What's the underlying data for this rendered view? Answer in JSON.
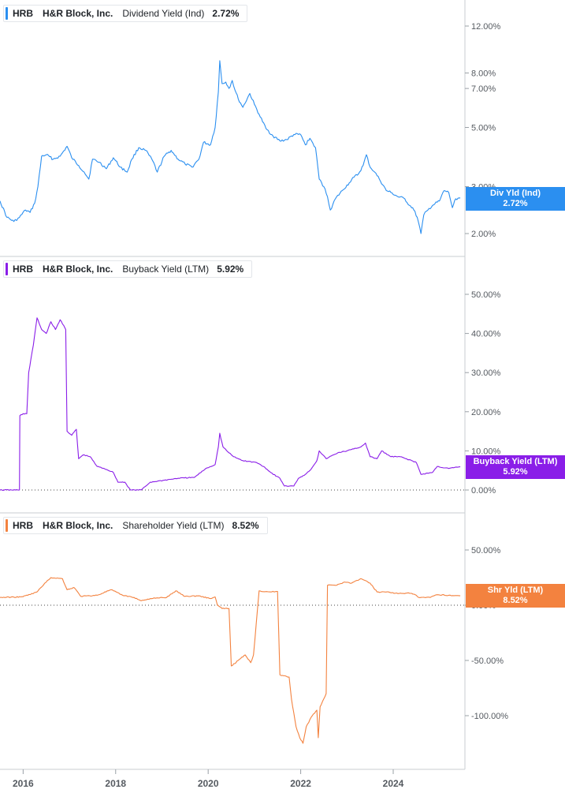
{
  "colors": {
    "div": "#2b8ff0",
    "buyback": "#8a1ee8",
    "shr": "#f3823f"
  },
  "panels": [
    {
      "ticker": "HRB",
      "company": "H&R Block, Inc.",
      "metric": "Dividend Yield (Ind)",
      "value": "2.72%",
      "badge_label": "Div Yld (Ind)",
      "badge_value": "2.72%"
    },
    {
      "ticker": "HRB",
      "company": "H&R Block, Inc.",
      "metric": "Buyback Yield (LTM)",
      "value": "5.92%",
      "badge_label": "Buyback Yield (LTM)",
      "badge_value": "5.92%"
    },
    {
      "ticker": "HRB",
      "company": "H&R Block, Inc.",
      "metric": "Shareholder Yield (LTM)",
      "value": "8.52%",
      "badge_label": "Shr Yld (LTM)",
      "badge_value": "8.52%"
    }
  ],
  "chart_data": [
    {
      "type": "line",
      "name": "Dividend Yield (Ind)",
      "scale": "log",
      "ylim": [
        1.85,
        14
      ],
      "yticks": [
        {
          "v": 12,
          "label": "12.00%"
        },
        {
          "v": 8,
          "label": "8.00%"
        },
        {
          "v": 7,
          "label": "7.00%"
        },
        {
          "v": 5,
          "label": "5.00%"
        },
        {
          "v": 3,
          "label": "3.00%"
        },
        {
          "v": 2,
          "label": "2.00%"
        }
      ],
      "xlim": [
        2015.5,
        2025.55
      ],
      "xticks": [
        2016,
        2018,
        2020,
        2022,
        2024
      ],
      "points": [
        [
          2015.5,
          2.65
        ],
        [
          2015.65,
          2.3
        ],
        [
          2015.8,
          2.22
        ],
        [
          2015.92,
          2.3
        ],
        [
          2016.05,
          2.45
        ],
        [
          2016.15,
          2.4
        ],
        [
          2016.25,
          2.6
        ],
        [
          2016.32,
          3.0
        ],
        [
          2016.4,
          3.9
        ],
        [
          2016.5,
          3.95
        ],
        [
          2016.65,
          3.8
        ],
        [
          2016.8,
          3.9
        ],
        [
          2016.95,
          4.25
        ],
        [
          2017.05,
          3.85
        ],
        [
          2017.2,
          3.6
        ],
        [
          2017.32,
          3.4
        ],
        [
          2017.42,
          3.2
        ],
        [
          2017.5,
          3.8
        ],
        [
          2017.65,
          3.7
        ],
        [
          2017.8,
          3.5
        ],
        [
          2017.95,
          3.85
        ],
        [
          2018.1,
          3.55
        ],
        [
          2018.25,
          3.4
        ],
        [
          2018.35,
          3.8
        ],
        [
          2018.5,
          4.2
        ],
        [
          2018.65,
          4.1
        ],
        [
          2018.8,
          3.75
        ],
        [
          2018.9,
          3.4
        ],
        [
          2019.05,
          3.9
        ],
        [
          2019.2,
          4.1
        ],
        [
          2019.35,
          3.8
        ],
        [
          2019.5,
          3.65
        ],
        [
          2019.65,
          3.55
        ],
        [
          2019.8,
          3.8
        ],
        [
          2019.9,
          4.4
        ],
        [
          2020.05,
          4.3
        ],
        [
          2020.15,
          5.0
        ],
        [
          2020.22,
          6.8
        ],
        [
          2020.25,
          8.9
        ],
        [
          2020.3,
          7.3
        ],
        [
          2020.38,
          7.4
        ],
        [
          2020.45,
          7.0
        ],
        [
          2020.52,
          7.5
        ],
        [
          2020.58,
          6.9
        ],
        [
          2020.65,
          6.4
        ],
        [
          2020.75,
          5.95
        ],
        [
          2020.9,
          6.7
        ],
        [
          2021.0,
          6.1
        ],
        [
          2021.1,
          5.6
        ],
        [
          2021.25,
          4.95
        ],
        [
          2021.4,
          4.65
        ],
        [
          2021.55,
          4.45
        ],
        [
          2021.7,
          4.5
        ],
        [
          2021.85,
          4.7
        ],
        [
          2022.0,
          4.7
        ],
        [
          2022.1,
          4.3
        ],
        [
          2022.2,
          4.55
        ],
        [
          2022.32,
          4.2
        ],
        [
          2022.4,
          3.2
        ],
        [
          2022.5,
          3.0
        ],
        [
          2022.58,
          2.75
        ],
        [
          2022.64,
          2.45
        ],
        [
          2022.75,
          2.7
        ],
        [
          2022.9,
          2.9
        ],
        [
          2023.05,
          3.1
        ],
        [
          2023.15,
          3.25
        ],
        [
          2023.25,
          3.35
        ],
        [
          2023.35,
          3.6
        ],
        [
          2023.42,
          3.95
        ],
        [
          2023.5,
          3.55
        ],
        [
          2023.6,
          3.4
        ],
        [
          2023.7,
          3.2
        ],
        [
          2023.85,
          2.9
        ],
        [
          2023.95,
          2.85
        ],
        [
          2024.1,
          2.75
        ],
        [
          2024.25,
          2.7
        ],
        [
          2024.35,
          2.55
        ],
        [
          2024.42,
          2.5
        ],
        [
          2024.52,
          2.3
        ],
        [
          2024.6,
          2.0
        ],
        [
          2024.66,
          2.35
        ],
        [
          2024.75,
          2.45
        ],
        [
          2024.85,
          2.55
        ],
        [
          2025.0,
          2.65
        ],
        [
          2025.1,
          2.9
        ],
        [
          2025.2,
          2.85
        ],
        [
          2025.28,
          2.5
        ],
        [
          2025.35,
          2.7
        ],
        [
          2025.45,
          2.72
        ]
      ]
    },
    {
      "type": "line",
      "name": "Buyback Yield (LTM)",
      "scale": "linear",
      "ylim": [
        -1,
        55
      ],
      "yticks": [
        {
          "v": 50,
          "label": "50.00%"
        },
        {
          "v": 40,
          "label": "40.00%"
        },
        {
          "v": 30,
          "label": "30.00%"
        },
        {
          "v": 20,
          "label": "20.00%"
        },
        {
          "v": 10,
          "label": "10.00%"
        },
        {
          "v": 0,
          "label": "0.00%"
        }
      ],
      "zero_line": 0,
      "xlim": [
        2015.5,
        2025.55
      ],
      "points": [
        [
          2015.5,
          0.0
        ],
        [
          2015.92,
          0.0
        ],
        [
          2015.93,
          19.0
        ],
        [
          2016.0,
          19.5
        ],
        [
          2016.08,
          19.5
        ],
        [
          2016.12,
          30.0
        ],
        [
          2016.22,
          37.0
        ],
        [
          2016.3,
          44.0
        ],
        [
          2016.4,
          41.0
        ],
        [
          2016.5,
          40.0
        ],
        [
          2016.6,
          43.0
        ],
        [
          2016.7,
          41.0
        ],
        [
          2016.8,
          43.5
        ],
        [
          2016.88,
          42.0
        ],
        [
          2016.92,
          41.0
        ],
        [
          2016.95,
          15.0
        ],
        [
          2017.05,
          14.0
        ],
        [
          2017.15,
          15.5
        ],
        [
          2017.2,
          8.0
        ],
        [
          2017.3,
          9.0
        ],
        [
          2017.45,
          8.5
        ],
        [
          2017.6,
          6.0
        ],
        [
          2017.75,
          5.5
        ],
        [
          2017.95,
          4.5
        ],
        [
          2018.05,
          2.0
        ],
        [
          2018.2,
          2.0
        ],
        [
          2018.32,
          0.0
        ],
        [
          2018.55,
          0.0
        ],
        [
          2018.75,
          2.0
        ],
        [
          2019.05,
          2.5
        ],
        [
          2019.35,
          3.0
        ],
        [
          2019.7,
          3.2
        ],
        [
          2019.95,
          5.5
        ],
        [
          2020.15,
          6.5
        ],
        [
          2020.22,
          11.0
        ],
        [
          2020.25,
          14.5
        ],
        [
          2020.32,
          11.0
        ],
        [
          2020.45,
          9.5
        ],
        [
          2020.55,
          8.5
        ],
        [
          2020.75,
          7.5
        ],
        [
          2021.05,
          7.0
        ],
        [
          2021.2,
          6.0
        ],
        [
          2021.35,
          4.5
        ],
        [
          2021.55,
          3.0
        ],
        [
          2021.65,
          1.0
        ],
        [
          2021.85,
          1.0
        ],
        [
          2021.95,
          3.0
        ],
        [
          2022.1,
          4.0
        ],
        [
          2022.2,
          5.0
        ],
        [
          2022.35,
          7.5
        ],
        [
          2022.4,
          10.0
        ],
        [
          2022.55,
          8.0
        ],
        [
          2022.8,
          9.5
        ],
        [
          2023.0,
          10.0
        ],
        [
          2023.15,
          10.5
        ],
        [
          2023.3,
          11.0
        ],
        [
          2023.4,
          12.0
        ],
        [
          2023.5,
          8.5
        ],
        [
          2023.65,
          8.0
        ],
        [
          2023.75,
          10.0
        ],
        [
          2023.95,
          8.5
        ],
        [
          2024.15,
          8.5
        ],
        [
          2024.4,
          7.5
        ],
        [
          2024.5,
          7.0
        ],
        [
          2024.6,
          4.0
        ],
        [
          2024.85,
          4.5
        ],
        [
          2024.95,
          6.0
        ],
        [
          2025.2,
          5.5
        ],
        [
          2025.45,
          5.92
        ]
      ]
    },
    {
      "type": "line",
      "name": "Shareholder Yield (LTM)",
      "scale": "linear",
      "ylim": [
        -128,
        70
      ],
      "yticks": [
        {
          "v": 50,
          "label": "50.00%"
        },
        {
          "v": 0,
          "label": "0.00%"
        },
        {
          "v": -50,
          "label": "-50.00%"
        },
        {
          "v": -100,
          "label": "-100.00%"
        }
      ],
      "zero_line": 0,
      "xlim": [
        2015.5,
        2025.55
      ],
      "points": [
        [
          2015.5,
          7.0
        ],
        [
          2015.95,
          7.5
        ],
        [
          2016.1,
          9.0
        ],
        [
          2016.3,
          12.0
        ],
        [
          2016.45,
          19.0
        ],
        [
          2016.6,
          25.0
        ],
        [
          2016.85,
          24.0
        ],
        [
          2016.95,
          14.0
        ],
        [
          2017.1,
          16.0
        ],
        [
          2017.25,
          8.0
        ],
        [
          2017.6,
          9.0
        ],
        [
          2017.9,
          14.0
        ],
        [
          2018.15,
          9.0
        ],
        [
          2018.4,
          7.0
        ],
        [
          2018.55,
          4.0
        ],
        [
          2018.75,
          6.0
        ],
        [
          2019.1,
          7.0
        ],
        [
          2019.3,
          13.0
        ],
        [
          2019.5,
          8.0
        ],
        [
          2019.8,
          8.5
        ],
        [
          2020.05,
          6.0
        ],
        [
          2020.15,
          7.5
        ],
        [
          2020.2,
          0.0
        ],
        [
          2020.3,
          -3.0
        ],
        [
          2020.45,
          -3.0
        ],
        [
          2020.5,
          -55.0
        ],
        [
          2020.65,
          -50.0
        ],
        [
          2020.8,
          -45.0
        ],
        [
          2020.92,
          -52.0
        ],
        [
          2020.98,
          -45.0
        ],
        [
          2021.1,
          13.0
        ],
        [
          2021.35,
          12.0
        ],
        [
          2021.5,
          12.5
        ],
        [
          2021.55,
          -63.0
        ],
        [
          2021.75,
          -65.0
        ],
        [
          2021.8,
          -85.0
        ],
        [
          2021.9,
          -110.0
        ],
        [
          2021.98,
          -120.0
        ],
        [
          2022.05,
          -125.0
        ],
        [
          2022.12,
          -110.0
        ],
        [
          2022.25,
          -100.0
        ],
        [
          2022.35,
          -95.0
        ],
        [
          2022.38,
          -120.0
        ],
        [
          2022.42,
          -92.0
        ],
        [
          2022.55,
          -80.0
        ],
        [
          2022.58,
          18.0
        ],
        [
          2022.75,
          18.0
        ],
        [
          2022.95,
          21.0
        ],
        [
          2023.1,
          20.0
        ],
        [
          2023.3,
          24.0
        ],
        [
          2023.5,
          20.0
        ],
        [
          2023.65,
          12.0
        ],
        [
          2023.9,
          12.0
        ],
        [
          2024.1,
          10.5
        ],
        [
          2024.3,
          11.0
        ],
        [
          2024.45,
          10.0
        ],
        [
          2024.55,
          7.0
        ],
        [
          2024.8,
          7.0
        ],
        [
          2024.95,
          9.5
        ],
        [
          2025.2,
          9.0
        ],
        [
          2025.45,
          8.52
        ]
      ]
    }
  ]
}
